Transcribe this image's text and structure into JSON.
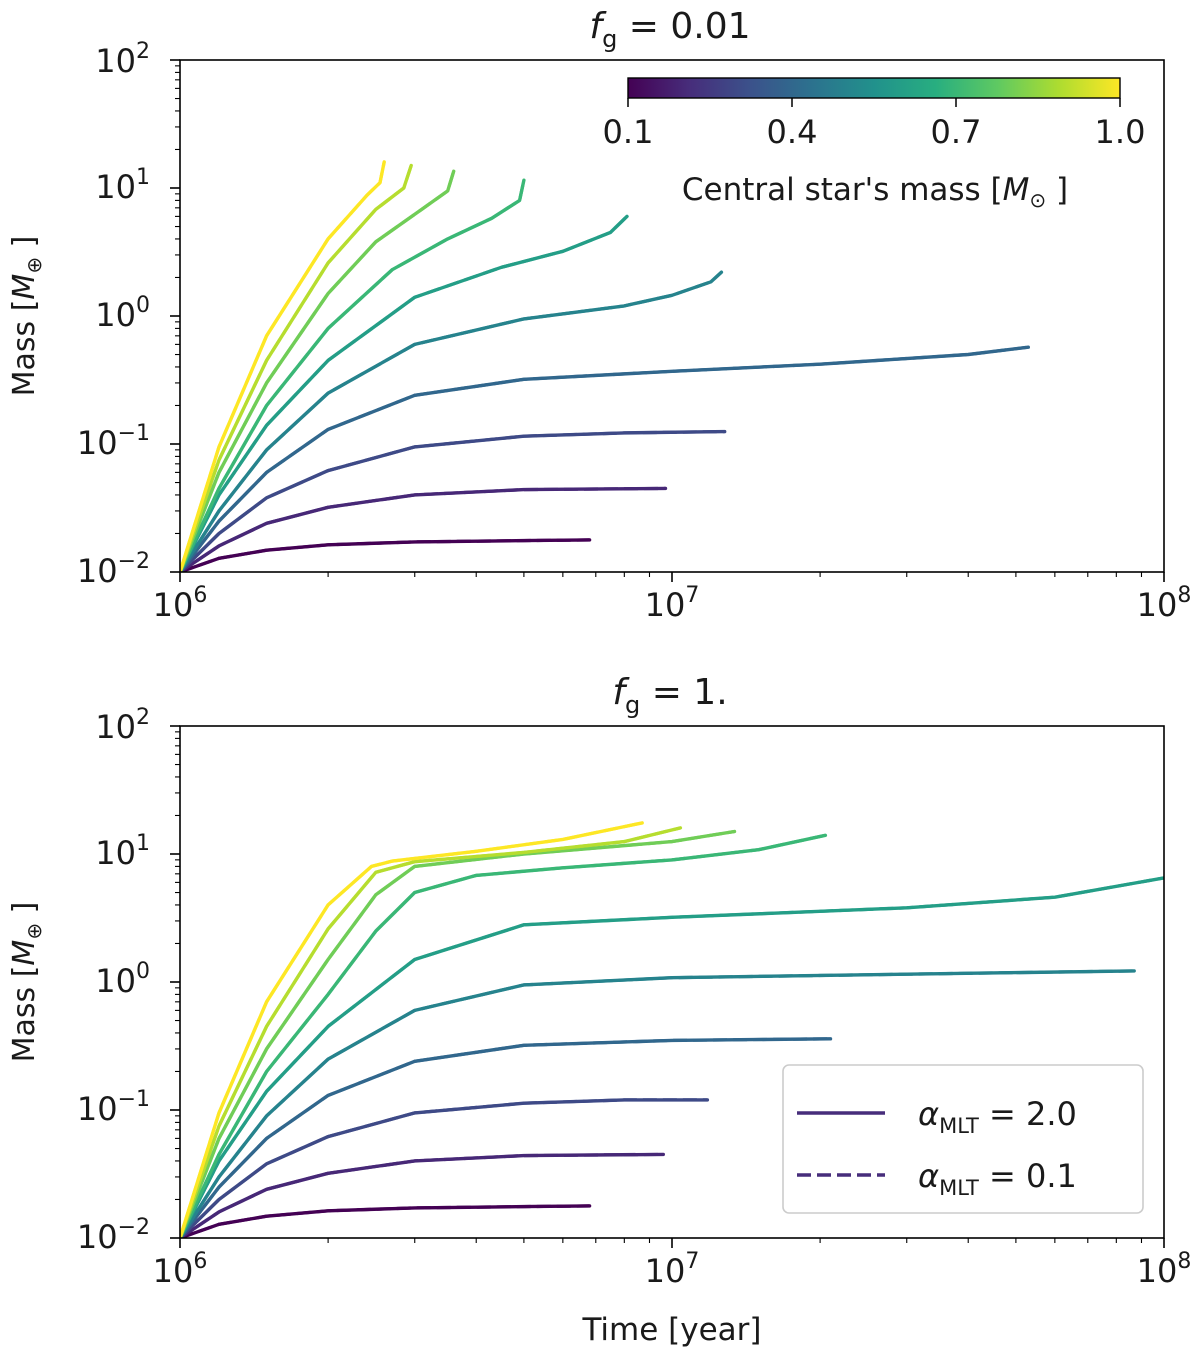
{
  "colorbar": {
    "label_prefix": "Central star's mass [",
    "label_symbol": "M",
    "label_sub": "⊙",
    "label_suffix": " ]",
    "ticks": [
      "0.1",
      "0.4",
      "0.7",
      "1.0"
    ],
    "tick_values": [
      0.1,
      0.4,
      0.7,
      1.0
    ],
    "range": [
      0.1,
      1.0
    ]
  },
  "legend": {
    "entries": [
      {
        "style": "solid",
        "label_symbol": "α",
        "label_sub": "MLT",
        "label_value": " = 2.0"
      },
      {
        "style": "dashed",
        "label_symbol": "α",
        "label_sub": "MLT",
        "label_value": " = 0.1"
      }
    ],
    "location": "lower-right"
  },
  "chart_data": [
    {
      "type": "line",
      "title_symbol": "f",
      "title_sub": "g",
      "title_value": " = 0.01",
      "xlabel": "",
      "ylabel_prefix": "Mass [",
      "ylabel_symbol": "M",
      "ylabel_sub": "⊕",
      "ylabel_suffix": " ]",
      "xscale": "log",
      "yscale": "log",
      "xlim": [
        1000000,
        100000000
      ],
      "ylim": [
        0.01,
        100
      ],
      "x_tick_labels": [
        {
          "base": "10",
          "exp": "6"
        },
        {
          "base": "10",
          "exp": "7"
        },
        {
          "base": "10",
          "exp": "8"
        }
      ],
      "y_tick_labels": [
        {
          "base": "10",
          "exp": "−2"
        },
        {
          "base": "10",
          "exp": "−1"
        },
        {
          "base": "10",
          "exp": "0"
        },
        {
          "base": "10",
          "exp": "1"
        },
        {
          "base": "10",
          "exp": "2"
        }
      ],
      "series": [
        {
          "name": "M*=0.1",
          "star_mass": 0.1,
          "x": [
            1000000,
            1200000,
            1500000,
            2000000,
            3000000,
            5000000,
            6800000
          ],
          "y": [
            0.01,
            0.0128,
            0.0148,
            0.0163,
            0.0172,
            0.0176,
            0.0178
          ]
        },
        {
          "name": "M*=0.2",
          "star_mass": 0.2,
          "x": [
            1000000,
            1200000,
            1500000,
            2000000,
            3000000,
            5000000,
            9700000
          ],
          "y": [
            0.01,
            0.016,
            0.024,
            0.032,
            0.04,
            0.044,
            0.045
          ]
        },
        {
          "name": "M*=0.3",
          "star_mass": 0.3,
          "x": [
            1000000,
            1200000,
            1500000,
            2000000,
            3000000,
            5000000,
            8000000,
            12800000
          ],
          "y": [
            0.01,
            0.02,
            0.038,
            0.062,
            0.095,
            0.115,
            0.122,
            0.125
          ]
        },
        {
          "name": "M*=0.4",
          "star_mass": 0.4,
          "x": [
            1000000,
            1200000,
            1500000,
            2000000,
            3000000,
            5000000,
            10000000,
            20000000,
            40000000,
            53000000
          ],
          "y": [
            0.01,
            0.025,
            0.06,
            0.13,
            0.24,
            0.32,
            0.37,
            0.42,
            0.5,
            0.57
          ]
        },
        {
          "name": "M*=0.5",
          "star_mass": 0.5,
          "x": [
            1000000,
            1200000,
            1500000,
            2000000,
            3000000,
            5000000,
            8000000,
            10000000,
            12000000,
            12600000
          ],
          "y": [
            0.01,
            0.03,
            0.09,
            0.25,
            0.6,
            0.95,
            1.2,
            1.45,
            1.85,
            2.2
          ]
        },
        {
          "name": "M*=0.6",
          "star_mass": 0.6,
          "x": [
            1000000,
            1200000,
            1500000,
            2000000,
            3000000,
            4500000,
            6000000,
            7500000,
            8100000
          ],
          "y": [
            0.01,
            0.04,
            0.14,
            0.45,
            1.4,
            2.4,
            3.2,
            4.5,
            6.0
          ]
        },
        {
          "name": "M*=0.7",
          "star_mass": 0.7,
          "x": [
            1000000,
            1200000,
            1500000,
            2000000,
            2700000,
            3500000,
            4300000,
            4900000,
            5000000
          ],
          "y": [
            0.01,
            0.045,
            0.2,
            0.8,
            2.3,
            4.0,
            5.8,
            8.0,
            11.5
          ]
        },
        {
          "name": "M*=0.8",
          "star_mass": 0.8,
          "x": [
            1000000,
            1200000,
            1500000,
            2000000,
            2500000,
            3100000,
            3500000,
            3600000
          ],
          "y": [
            0.01,
            0.06,
            0.3,
            1.5,
            3.8,
            6.8,
            9.5,
            13.5
          ]
        },
        {
          "name": "M*=0.9",
          "star_mass": 0.9,
          "x": [
            1000000,
            1200000,
            1500000,
            2000000,
            2500000,
            2850000,
            2950000
          ],
          "y": [
            0.01,
            0.075,
            0.45,
            2.6,
            6.8,
            10.0,
            15.0
          ]
        },
        {
          "name": "M*=1.0",
          "star_mass": 1.0,
          "x": [
            1000000,
            1200000,
            1500000,
            2000000,
            2400000,
            2550000,
            2600000
          ],
          "y": [
            0.01,
            0.095,
            0.7,
            4.0,
            8.8,
            11.0,
            16.0
          ]
        }
      ]
    },
    {
      "type": "line",
      "title_symbol": "f",
      "title_sub": "g",
      "title_value": " = 1.",
      "xlabel": "Time [year]",
      "ylabel_prefix": "Mass [",
      "ylabel_symbol": "M",
      "ylabel_sub": "⊕",
      "ylabel_suffix": " ]",
      "xscale": "log",
      "yscale": "log",
      "xlim": [
        1000000,
        100000000
      ],
      "ylim": [
        0.01,
        100
      ],
      "x_tick_labels": [
        {
          "base": "10",
          "exp": "6"
        },
        {
          "base": "10",
          "exp": "7"
        },
        {
          "base": "10",
          "exp": "8"
        }
      ],
      "y_tick_labels": [
        {
          "base": "10",
          "exp": "−2"
        },
        {
          "base": "10",
          "exp": "−1"
        },
        {
          "base": "10",
          "exp": "0"
        },
        {
          "base": "10",
          "exp": "1"
        },
        {
          "base": "10",
          "exp": "2"
        }
      ],
      "series": [
        {
          "name": "M*=0.1",
          "star_mass": 0.1,
          "x": [
            1000000,
            1200000,
            1500000,
            2000000,
            3000000,
            5000000,
            6800000
          ],
          "y": [
            0.01,
            0.0128,
            0.0148,
            0.0163,
            0.0172,
            0.0176,
            0.0178
          ]
        },
        {
          "name": "M*=0.2",
          "star_mass": 0.2,
          "x": [
            1000000,
            1200000,
            1500000,
            2000000,
            3000000,
            5000000,
            9600000
          ],
          "y": [
            0.01,
            0.016,
            0.024,
            0.032,
            0.04,
            0.044,
            0.045
          ]
        },
        {
          "name": "M*=0.3",
          "star_mass": 0.3,
          "x": [
            1000000,
            1200000,
            1500000,
            2000000,
            3000000,
            5000000,
            8000000,
            11800000
          ],
          "y": [
            0.01,
            0.02,
            0.038,
            0.062,
            0.095,
            0.113,
            0.12,
            0.12
          ]
        },
        {
          "name": "M*=0.4",
          "star_mass": 0.4,
          "x": [
            1000000,
            1200000,
            1500000,
            2000000,
            3000000,
            5000000,
            10000000,
            21000000
          ],
          "y": [
            0.01,
            0.025,
            0.06,
            0.13,
            0.24,
            0.32,
            0.35,
            0.36
          ]
        },
        {
          "name": "M*=0.5",
          "star_mass": 0.5,
          "x": [
            1000000,
            1200000,
            1500000,
            2000000,
            3000000,
            5000000,
            10000000,
            30000000,
            87000000
          ],
          "y": [
            0.01,
            0.03,
            0.09,
            0.25,
            0.6,
            0.95,
            1.08,
            1.15,
            1.22
          ]
        },
        {
          "name": "M*=0.6",
          "star_mass": 0.6,
          "x": [
            1000000,
            1200000,
            1500000,
            2000000,
            3000000,
            5000000,
            10000000,
            30000000,
            60000000,
            100000000
          ],
          "y": [
            0.01,
            0.04,
            0.14,
            0.45,
            1.5,
            2.8,
            3.2,
            3.8,
            4.6,
            6.5
          ]
        },
        {
          "name": "M*=0.7",
          "star_mass": 0.7,
          "x": [
            1000000,
            1200000,
            1500000,
            2000000,
            2500000,
            3000000,
            4000000,
            6000000,
            10000000,
            15000000,
            20500000
          ],
          "y": [
            0.01,
            0.045,
            0.2,
            0.8,
            2.5,
            5.0,
            6.8,
            7.8,
            9.0,
            10.8,
            14.0
          ]
        },
        {
          "name": "M*=0.8",
          "star_mass": 0.8,
          "x": [
            1000000,
            1200000,
            1500000,
            2000000,
            2500000,
            3000000,
            5000000,
            10000000,
            13400000
          ],
          "y": [
            0.01,
            0.06,
            0.3,
            1.5,
            4.8,
            8.0,
            10.0,
            12.5,
            15.0
          ]
        },
        {
          "name": "M*=0.9",
          "star_mass": 0.9,
          "x": [
            1000000,
            1200000,
            1500000,
            2000000,
            2500000,
            3000000,
            5000000,
            8000000,
            10400000
          ],
          "y": [
            0.01,
            0.075,
            0.45,
            2.6,
            7.2,
            8.7,
            10.3,
            12.5,
            16.0
          ]
        },
        {
          "name": "M*=1.0",
          "star_mass": 1.0,
          "x": [
            1000000,
            1200000,
            1500000,
            2000000,
            2450000,
            2700000,
            4000000,
            6000000,
            8700000
          ],
          "y": [
            0.01,
            0.095,
            0.7,
            4.0,
            8.0,
            8.8,
            10.5,
            13.0,
            17.5
          ]
        }
      ]
    }
  ]
}
